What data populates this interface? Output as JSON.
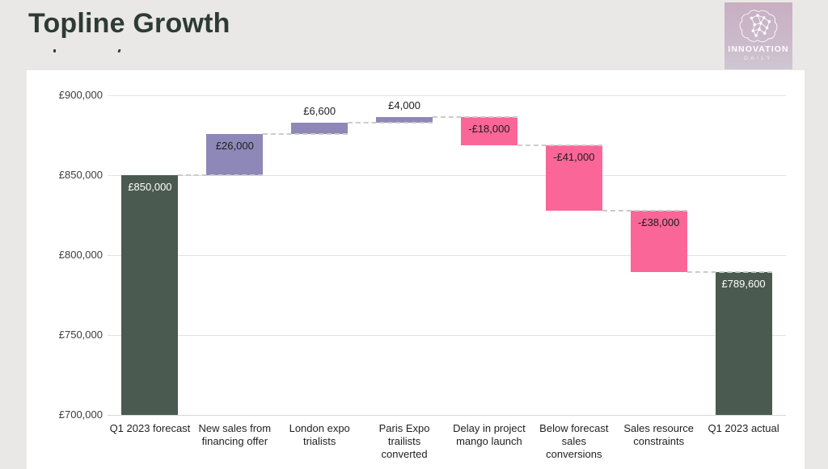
{
  "page": {
    "title": "Topline Growth",
    "background": "#e9e8e6"
  },
  "logo": {
    "line1": "INNOVATION",
    "line2": "DAILY"
  },
  "chart_data": {
    "type": "waterfall",
    "title": "Topline Growth",
    "currency": "GBP",
    "ylim": [
      700000,
      900000
    ],
    "ytick_step": 50000,
    "yticks": [
      {
        "value": 900000,
        "label": "£900,000"
      },
      {
        "value": 850000,
        "label": "£850,000"
      },
      {
        "value": 800000,
        "label": "£800,000"
      },
      {
        "value": 750000,
        "label": "£750,000"
      },
      {
        "value": 700000,
        "label": "£700,000"
      }
    ],
    "grid": true,
    "legend": "none",
    "colors": {
      "total": "#4a5a51",
      "increase": "#8e88b8",
      "decrease": "#fa6698",
      "connector": "#cbcbcb",
      "label_on_total": "#ffffff",
      "label_on_delta": "#1d1d1d"
    },
    "bars": [
      {
        "category": "Q1 2023 forecast",
        "kind": "total",
        "delta": 850000,
        "cumulative": 850000,
        "value_label": "£850,000",
        "label_placement": "inside"
      },
      {
        "category": "New sales from financing offer",
        "kind": "increase",
        "delta": 26000,
        "cumulative": 876000,
        "value_label": "£26,000",
        "label_placement": "inside"
      },
      {
        "category": "London expo trialists",
        "kind": "increase",
        "delta": 6600,
        "cumulative": 882600,
        "value_label": "£6,600",
        "label_placement": "above"
      },
      {
        "category": "Paris Expo trailists converted",
        "kind": "increase",
        "delta": 4000,
        "cumulative": 886600,
        "value_label": "£4,000",
        "label_placement": "above"
      },
      {
        "category": "Delay in project mango launch",
        "kind": "decrease",
        "delta": -18000,
        "cumulative": 868600,
        "value_label": "-£18,000",
        "label_placement": "inside"
      },
      {
        "category": "Below forecast sales conversions",
        "kind": "decrease",
        "delta": -41000,
        "cumulative": 827600,
        "value_label": "-£41,000",
        "label_placement": "inside"
      },
      {
        "category": "Sales resource constraints",
        "kind": "decrease",
        "delta": -38000,
        "cumulative": 789600,
        "value_label": "-£38,000",
        "label_placement": "inside"
      },
      {
        "category": "Q1 2023 actual",
        "kind": "total",
        "delta": 789600,
        "cumulative": 789600,
        "value_label": "£789,600",
        "label_placement": "inside"
      }
    ]
  }
}
